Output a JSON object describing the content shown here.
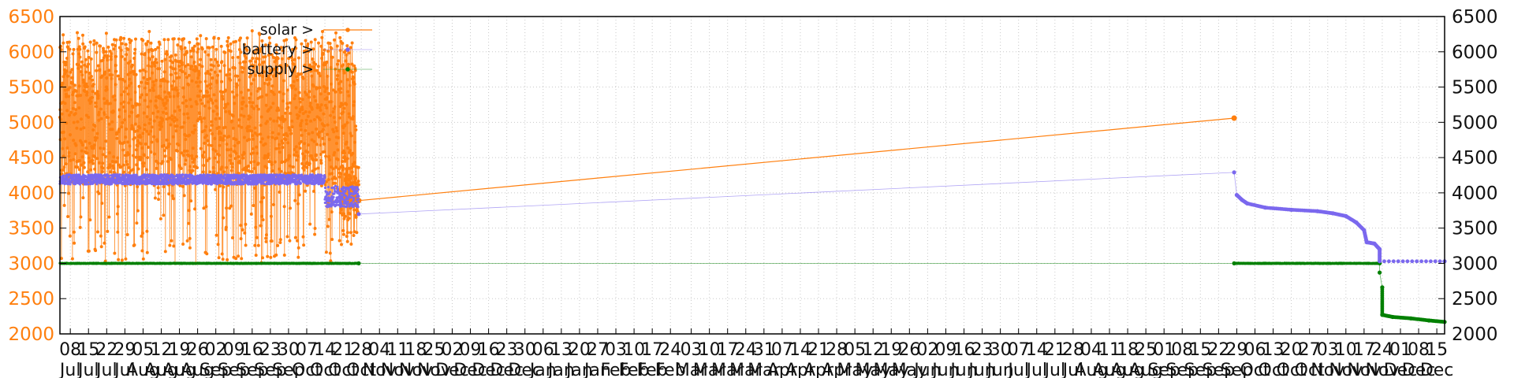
{
  "chart_data": {
    "type": "line",
    "x_range": [
      "2023-07-04",
      "2024-12-18"
    ],
    "y_range": [
      2000,
      6500
    ],
    "y_ticks": [
      2000,
      2500,
      3000,
      3500,
      4000,
      4500,
      5000,
      5500,
      6000,
      6500
    ],
    "grid": true,
    "legend_position": "top-left",
    "x_tick_labels": [
      {
        "date": "2023-07-08",
        "day": "08",
        "month": "Jul"
      },
      {
        "date": "2023-07-15",
        "day": "15",
        "month": "Jul"
      },
      {
        "date": "2023-07-22",
        "day": "22",
        "month": "Jul"
      },
      {
        "date": "2023-07-29",
        "day": "29",
        "month": "Jul"
      },
      {
        "date": "2023-08-05",
        "day": "05",
        "month": "Aug"
      },
      {
        "date": "2023-08-12",
        "day": "12",
        "month": "Aug"
      },
      {
        "date": "2023-08-19",
        "day": "19",
        "month": "Aug"
      },
      {
        "date": "2023-08-26",
        "day": "26",
        "month": "Aug"
      },
      {
        "date": "2023-09-02",
        "day": "02",
        "month": "Sep"
      },
      {
        "date": "2023-09-09",
        "day": "09",
        "month": "Sep"
      },
      {
        "date": "2023-09-16",
        "day": "16",
        "month": "Sep"
      },
      {
        "date": "2023-09-23",
        "day": "23",
        "month": "Sep"
      },
      {
        "date": "2023-09-30",
        "day": "30",
        "month": "Sep"
      },
      {
        "date": "2023-10-07",
        "day": "07",
        "month": "Oct"
      },
      {
        "date": "2023-10-14",
        "day": "14",
        "month": "Oct"
      },
      {
        "date": "2023-10-21",
        "day": "21",
        "month": "Oct"
      },
      {
        "date": "2023-10-28",
        "day": "28",
        "month": "Oct"
      },
      {
        "date": "2023-11-04",
        "day": "04",
        "month": "Nov"
      },
      {
        "date": "2023-11-11",
        "day": "11",
        "month": "Nov"
      },
      {
        "date": "2023-11-18",
        "day": "18",
        "month": "Nov"
      },
      {
        "date": "2023-11-25",
        "day": "25",
        "month": "Nov"
      },
      {
        "date": "2023-12-02",
        "day": "02",
        "month": "Dec"
      },
      {
        "date": "2023-12-09",
        "day": "09",
        "month": "Dec"
      },
      {
        "date": "2023-12-16",
        "day": "16",
        "month": "Dec"
      },
      {
        "date": "2023-12-23",
        "day": "23",
        "month": "Dec"
      },
      {
        "date": "2023-12-30",
        "day": "30",
        "month": "Dec"
      },
      {
        "date": "2024-01-06",
        "day": "06",
        "month": "Jan"
      },
      {
        "date": "2024-01-13",
        "day": "13",
        "month": "Jan"
      },
      {
        "date": "2024-01-20",
        "day": "20",
        "month": "Jan"
      },
      {
        "date": "2024-01-27",
        "day": "27",
        "month": "Jan"
      },
      {
        "date": "2024-02-03",
        "day": "03",
        "month": "Feb"
      },
      {
        "date": "2024-02-10",
        "day": "10",
        "month": "Feb"
      },
      {
        "date": "2024-02-17",
        "day": "17",
        "month": "Feb"
      },
      {
        "date": "2024-02-24",
        "day": "24",
        "month": "Feb"
      },
      {
        "date": "2024-03-03",
        "day": "03",
        "month": "Mar"
      },
      {
        "date": "2024-03-10",
        "day": "10",
        "month": "Mar"
      },
      {
        "date": "2024-03-17",
        "day": "17",
        "month": "Mar"
      },
      {
        "date": "2024-03-24",
        "day": "24",
        "month": "Mar"
      },
      {
        "date": "2024-03-31",
        "day": "31",
        "month": "Mar"
      },
      {
        "date": "2024-04-07",
        "day": "07",
        "month": "Apr"
      },
      {
        "date": "2024-04-14",
        "day": "14",
        "month": "Apr"
      },
      {
        "date": "2024-04-21",
        "day": "21",
        "month": "Apr"
      },
      {
        "date": "2024-04-28",
        "day": "28",
        "month": "Apr"
      },
      {
        "date": "2024-05-05",
        "day": "05",
        "month": "May"
      },
      {
        "date": "2024-05-12",
        "day": "12",
        "month": "May"
      },
      {
        "date": "2024-05-19",
        "day": "19",
        "month": "May"
      },
      {
        "date": "2024-05-26",
        "day": "26",
        "month": "May"
      },
      {
        "date": "2024-06-02",
        "day": "02",
        "month": "Jun"
      },
      {
        "date": "2024-06-09",
        "day": "09",
        "month": "Jun"
      },
      {
        "date": "2024-06-16",
        "day": "16",
        "month": "Jun"
      },
      {
        "date": "2024-06-23",
        "day": "23",
        "month": "Jun"
      },
      {
        "date": "2024-06-30",
        "day": "30",
        "month": "Jun"
      },
      {
        "date": "2024-07-07",
        "day": "07",
        "month": "Jul"
      },
      {
        "date": "2024-07-14",
        "day": "14",
        "month": "Jul"
      },
      {
        "date": "2024-07-21",
        "day": "21",
        "month": "Jul"
      },
      {
        "date": "2024-07-28",
        "day": "28",
        "month": "Jul"
      },
      {
        "date": "2024-08-04",
        "day": "04",
        "month": "Aug"
      },
      {
        "date": "2024-08-11",
        "day": "11",
        "month": "Aug"
      },
      {
        "date": "2024-08-18",
        "day": "18",
        "month": "Aug"
      },
      {
        "date": "2024-08-25",
        "day": "25",
        "month": "Aug"
      },
      {
        "date": "2024-09-01",
        "day": "01",
        "month": "Sep"
      },
      {
        "date": "2024-09-08",
        "day": "08",
        "month": "Sep"
      },
      {
        "date": "2024-09-15",
        "day": "15",
        "month": "Sep"
      },
      {
        "date": "2024-09-22",
        "day": "22",
        "month": "Sep"
      },
      {
        "date": "2024-09-29",
        "day": "29",
        "month": "Sep"
      },
      {
        "date": "2024-10-06",
        "day": "06",
        "month": "Oct"
      },
      {
        "date": "2024-10-13",
        "day": "13",
        "month": "Oct"
      },
      {
        "date": "2024-10-20",
        "day": "20",
        "month": "Oct"
      },
      {
        "date": "2024-10-27",
        "day": "27",
        "month": "Oct"
      },
      {
        "date": "2024-11-03",
        "day": "03",
        "month": "Nov"
      },
      {
        "date": "2024-11-10",
        "day": "10",
        "month": "Nov"
      },
      {
        "date": "2024-11-17",
        "day": "17",
        "month": "Nov"
      },
      {
        "date": "2024-11-24",
        "day": "24",
        "month": "Nov"
      },
      {
        "date": "2024-12-01",
        "day": "01",
        "month": "Dec"
      },
      {
        "date": "2024-12-08",
        "day": "08",
        "month": "Dec"
      },
      {
        "date": "2024-12-15",
        "day": "15",
        "month": "Dec"
      }
    ],
    "series": [
      {
        "name": "solar >",
        "color": "#ff7f0e",
        "style": "line-points",
        "segments": [
          {
            "start": "2023-07-04",
            "end": "2023-10-26",
            "band_low": 3000,
            "band_high": 6300,
            "dense_low": 4100,
            "dense_high": 6200
          },
          {
            "start": "2023-10-20",
            "end": "2023-10-27",
            "band_low": 3200,
            "band_high": 4600,
            "dense_low": 3600,
            "dense_high": 4400
          }
        ],
        "points": [
          {
            "x": "2023-10-27",
            "y": 3890
          },
          {
            "x": "2024-09-28",
            "y": 5060
          }
        ]
      },
      {
        "name": "battery >",
        "color": "#7b68ee",
        "style": "points",
        "segments": [
          {
            "start": "2023-07-04",
            "end": "2023-10-14",
            "band_low": 4120,
            "band_high": 4260
          },
          {
            "start": "2023-10-14",
            "end": "2023-10-27",
            "band_low": 3800,
            "band_high": 4100
          }
        ],
        "points": [
          {
            "x": "2023-10-27",
            "y": 3700
          },
          {
            "x": "2024-09-28",
            "y": 4290
          },
          {
            "x": "2024-09-29",
            "y": 3970
          },
          {
            "x": "2024-10-01",
            "y": 3900
          },
          {
            "x": "2024-10-03",
            "y": 3850
          },
          {
            "x": "2024-10-10",
            "y": 3790
          },
          {
            "x": "2024-10-20",
            "y": 3760
          },
          {
            "x": "2024-10-30",
            "y": 3740
          },
          {
            "x": "2024-11-05",
            "y": 3710
          },
          {
            "x": "2024-11-10",
            "y": 3670
          },
          {
            "x": "2024-11-14",
            "y": 3580
          },
          {
            "x": "2024-11-17",
            "y": 3470
          },
          {
            "x": "2024-11-18",
            "y": 3300
          },
          {
            "x": "2024-11-21",
            "y": 3280
          },
          {
            "x": "2024-11-23",
            "y": 3200
          },
          {
            "x": "2024-11-23",
            "y": 3030
          },
          {
            "x": "2024-12-18",
            "y": 3030
          }
        ]
      },
      {
        "name": "supply >",
        "color": "#008000",
        "style": "points",
        "segments": [
          {
            "start": "2023-07-04",
            "end": "2023-10-27",
            "band_low": 2995,
            "band_high": 3005
          },
          {
            "start": "2024-09-28",
            "end": "2024-11-23",
            "band_low": 2995,
            "band_high": 3005
          }
        ],
        "points": [
          {
            "x": "2023-10-27",
            "y": 3000
          },
          {
            "x": "2024-09-28",
            "y": 3000
          },
          {
            "x": "2024-11-23",
            "y": 3000
          },
          {
            "x": "2024-11-23",
            "y": 2870
          },
          {
            "x": "2024-11-24",
            "y": 2660
          },
          {
            "x": "2024-11-24",
            "y": 2270
          },
          {
            "x": "2024-11-28",
            "y": 2240
          },
          {
            "x": "2024-12-05",
            "y": 2220
          },
          {
            "x": "2024-12-12",
            "y": 2190
          },
          {
            "x": "2024-12-18",
            "y": 2170
          }
        ]
      }
    ]
  }
}
